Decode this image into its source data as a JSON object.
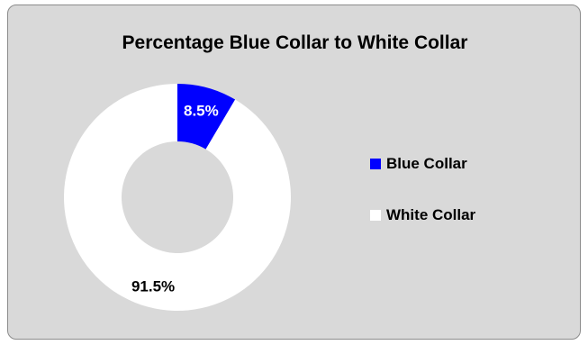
{
  "chart_data": {
    "type": "pie",
    "variant": "donut",
    "title": "Percentage Blue Collar to White Collar",
    "categories": [
      "Blue Collar",
      "White Collar"
    ],
    "values": [
      8.5,
      91.5
    ],
    "labels": [
      "8.5%",
      "91.5%"
    ],
    "colors": [
      "#0000ff",
      "#ffffff"
    ],
    "label_colors": [
      "#ffffff",
      "#000000"
    ],
    "legend_position": "right",
    "background": "#d9d9d9"
  }
}
